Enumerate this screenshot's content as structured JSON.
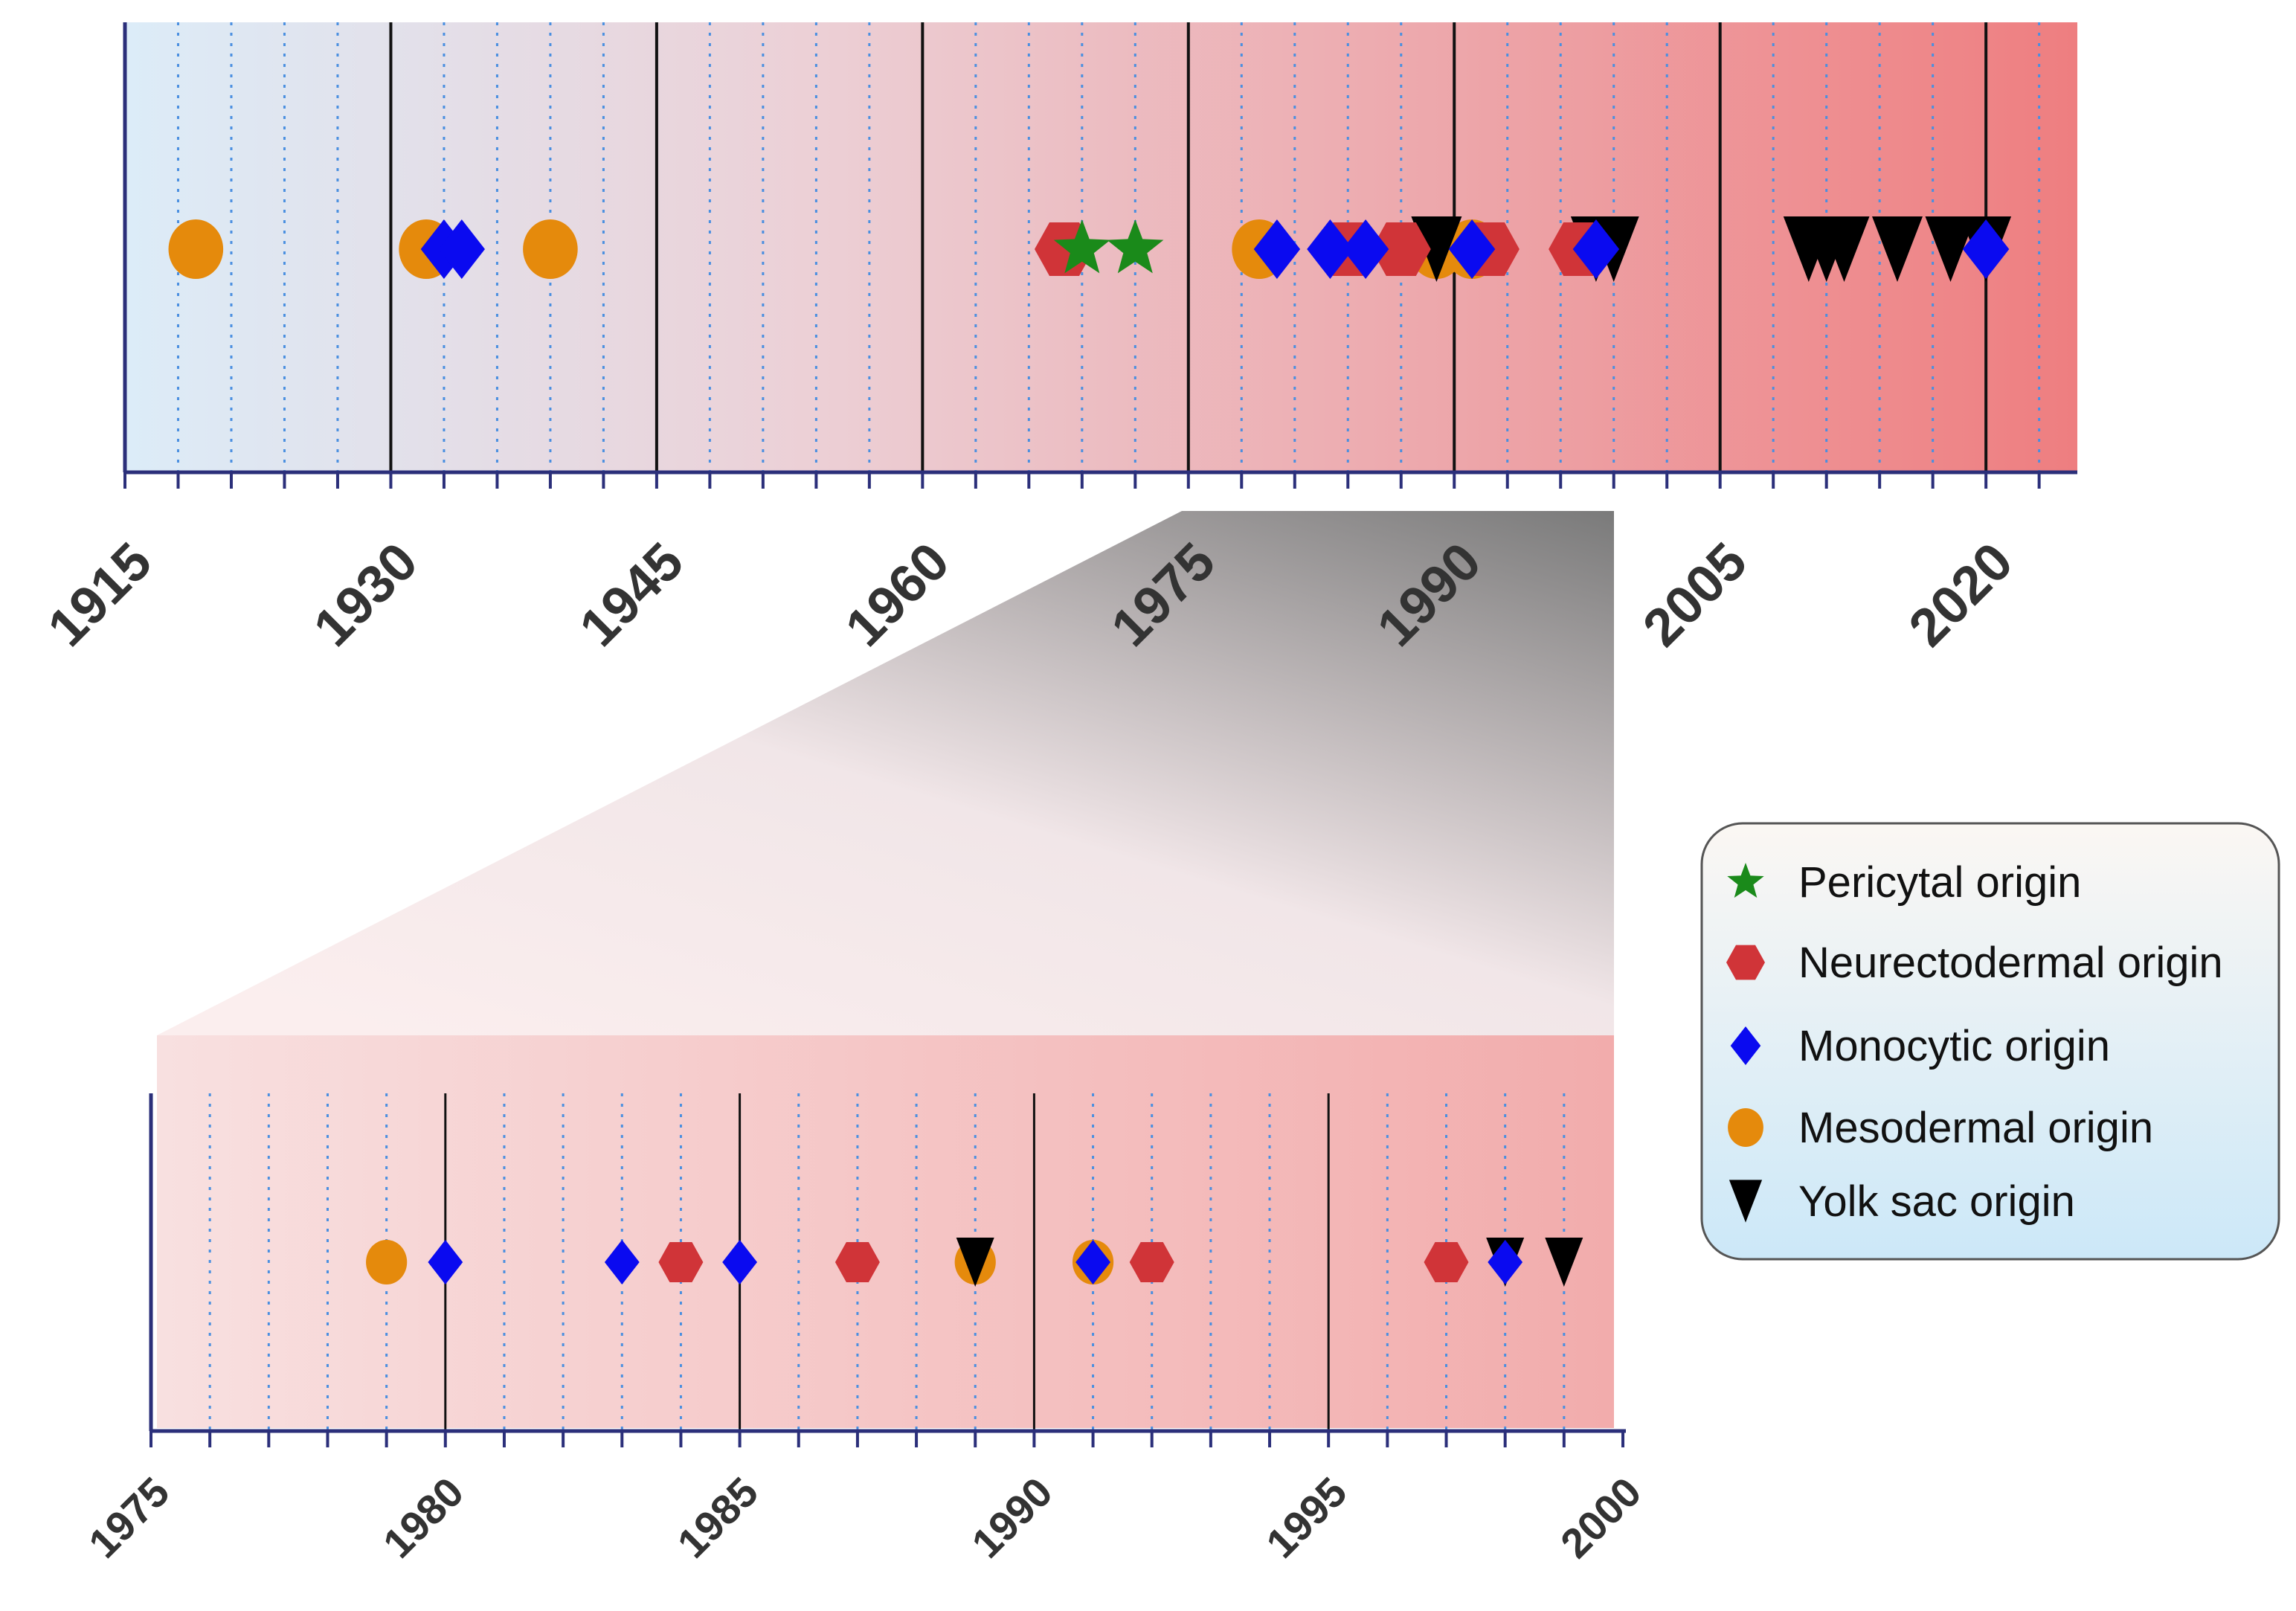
{
  "chart_data": [
    {
      "type": "scatter",
      "title": "",
      "xlabel": "",
      "ylabel": "",
      "xlim": [
        1915,
        2025
      ],
      "major_ticks": [
        "1915",
        "1930",
        "1945",
        "1960",
        "1975",
        "1990",
        "2005",
        "2020"
      ],
      "minor_tick_step": 3,
      "grid": true,
      "series": [
        {
          "name": "Pericytal origin",
          "x": [
            1969,
            1972
          ]
        },
        {
          "name": "Neurectodermal origin",
          "x": [
            1968,
            1984,
            1987,
            1992,
            1997
          ]
        },
        {
          "name": "Monocytic origin",
          "x": [
            1933,
            1934,
            1980,
            1983,
            1985,
            1991,
            1998,
            2020
          ]
        },
        {
          "name": "Mesodermal origin",
          "x": [
            1919,
            1932,
            1939,
            1979,
            1989,
            1991
          ]
        },
        {
          "name": "Yolk sac origin",
          "x": [
            1989,
            1998,
            1999,
            2010,
            2011,
            2012,
            2015,
            2018,
            2020
          ]
        }
      ]
    },
    {
      "type": "scatter",
      "title": "",
      "xlabel": "",
      "ylabel": "",
      "xlim": [
        1975,
        2000
      ],
      "major_ticks": [
        "1975",
        "1980",
        "1985",
        "1990",
        "1995",
        "2000"
      ],
      "minor_tick_step": 1,
      "grid": true,
      "series": [
        {
          "name": "Pericytal origin",
          "x": []
        },
        {
          "name": "Neurectodermal origin",
          "x": [
            1984,
            1987,
            1992,
            1997
          ]
        },
        {
          "name": "Monocytic origin",
          "x": [
            1980,
            1983,
            1985,
            1991,
            1998
          ]
        },
        {
          "name": "Mesodermal origin",
          "x": [
            1979,
            1989,
            1991
          ]
        },
        {
          "name": "Yolk sac origin",
          "x": [
            1989,
            1998,
            1999
          ]
        }
      ]
    }
  ],
  "legend": {
    "placement": "right",
    "items": [
      {
        "label": "Pericytal origin",
        "icon": "star-icon",
        "color": "#1a8a1a"
      },
      {
        "label": "Neurectodermal origin",
        "icon": "hexagon-icon",
        "color": "#d03438"
      },
      {
        "label": "Monocytic origin",
        "icon": "diamond-icon",
        "color": "#0a0af0"
      },
      {
        "label": "Mesodermal origin",
        "icon": "circle-icon",
        "color": "#e58a0c"
      },
      {
        "label": "Yolk sac origin",
        "icon": "triangle-down-icon",
        "color": "#000000"
      }
    ]
  },
  "colors": {
    "axis": "#2b2f7a",
    "grid_dotted": "#4a8fe0",
    "bg_start": "#dcecf8",
    "bg_end": "#ee7e80"
  }
}
